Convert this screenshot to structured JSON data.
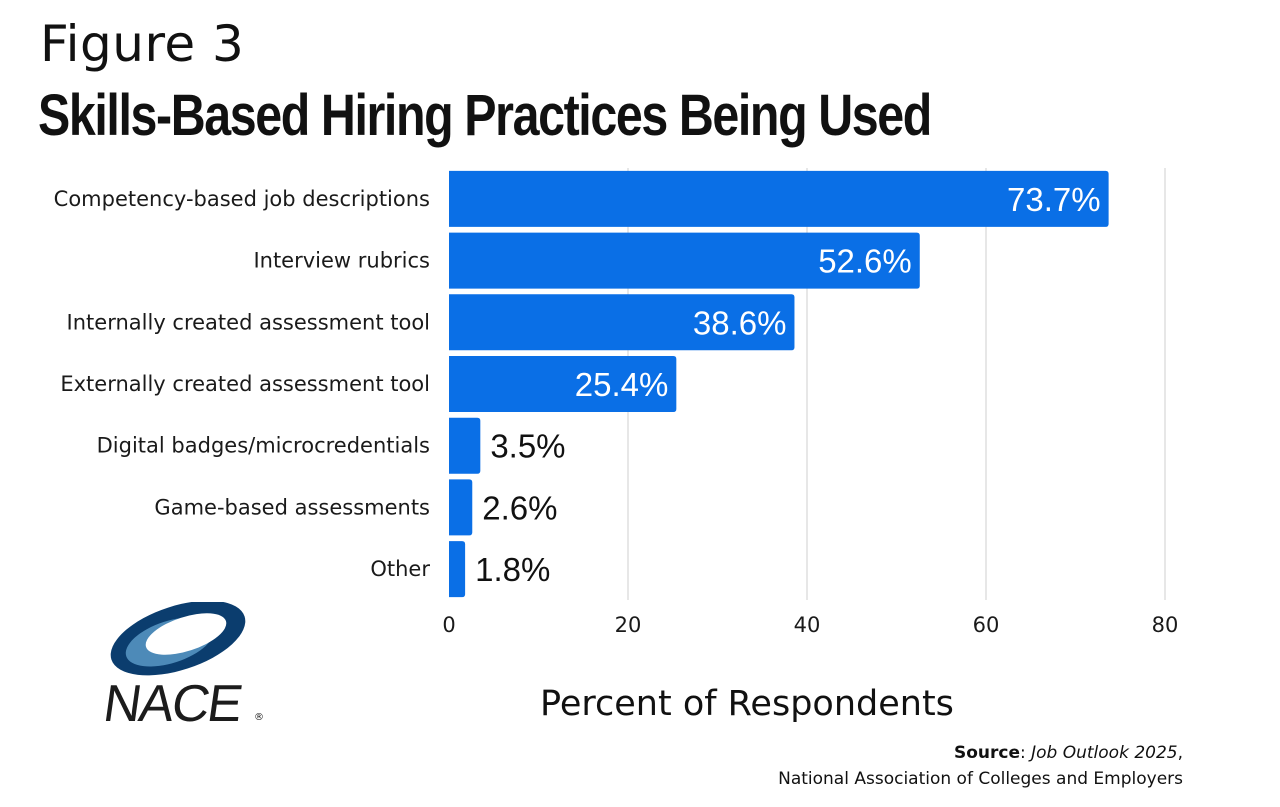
{
  "figure": {
    "label": "Figure 3",
    "title": "Skills-Based Hiring Practices Being Used"
  },
  "chart_data": {
    "type": "bar",
    "orientation": "horizontal",
    "categories": [
      "Competency-based job descriptions",
      "Interview rubrics",
      "Internally created assessment tool",
      "Externally created assessment tool",
      "Digital badges/microcredentials",
      "Game-based assessments",
      "Other"
    ],
    "values": [
      73.7,
      52.6,
      38.6,
      25.4,
      3.5,
      2.6,
      1.8
    ],
    "value_labels": [
      "73.7%",
      "52.6%",
      "38.6%",
      "25.4%",
      "3.5%",
      "2.6%",
      "1.8%"
    ],
    "xlabel": "Percent of Respondents",
    "ylabel": "",
    "xlim": [
      0,
      80
    ],
    "xticks": [
      0,
      20,
      40,
      60,
      80
    ],
    "grid": "vertical",
    "bar_color": "#0a6fe6",
    "grid_color": "#cfcfcf"
  },
  "source": {
    "prefix": "Source",
    "publication": "Job Outlook 2025",
    "suffix": ",",
    "organization": "National Association of Colleges and Employers"
  },
  "logo": {
    "text": "NACE",
    "registered": "®",
    "colors": {
      "dark": "#0b3d6e",
      "light": "#4d8ab8"
    }
  }
}
